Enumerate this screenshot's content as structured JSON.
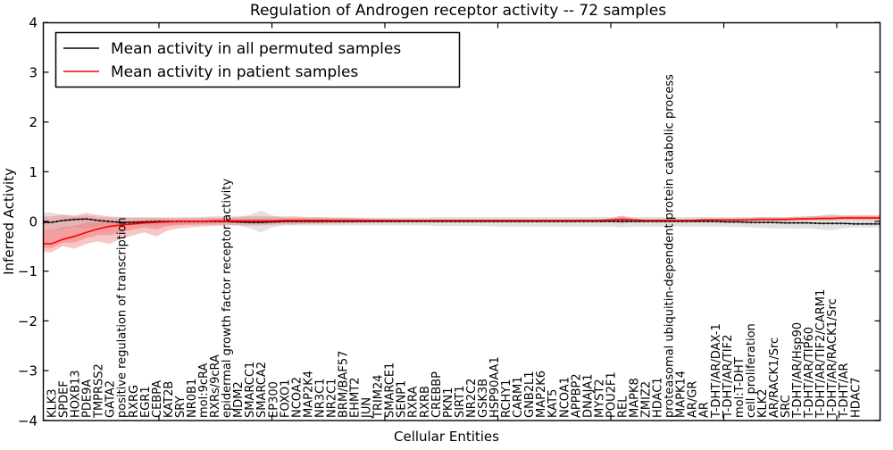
{
  "figure": {
    "title": "Regulation of Androgen receptor activity -- 72 samples",
    "xlabel": "Cellular Entities",
    "ylabel": "Inferred Activity"
  },
  "legend": {
    "items": [
      {
        "label": "Mean activity in all permuted samples",
        "color": "#000000"
      },
      {
        "label": "Mean activity in patient samples",
        "color": "#ff0000"
      }
    ]
  },
  "chart_data": {
    "type": "line",
    "title": "Regulation of Androgen receptor activity -- 72 samples",
    "xlabel": "Cellular Entities",
    "ylabel": "Inferred Activity",
    "ylim": [
      -4,
      4
    ],
    "yticks": [
      4,
      3,
      2,
      1,
      0,
      -1,
      -2,
      -3,
      -4
    ],
    "ytick_labels": [
      "4",
      "3",
      "2",
      "1",
      "0",
      "−1",
      "−2",
      "−3",
      "−4"
    ],
    "grid": false,
    "legend_position": "upper left",
    "colors": {
      "permuted_line": "#000000",
      "permuted_band": "#aaaaaa",
      "patient_line": "#ff0000",
      "patient_band": "#f07070"
    },
    "categories": [
      "KLK3",
      "SPDEF",
      "HOXB13",
      "PDE9A",
      "TMPRSS2",
      "GATA2",
      "positive regulation of transcription",
      "RXRG",
      "EGR1",
      "CEBPA",
      "KAT2B",
      "SRY",
      "NR0B1",
      "mol:9cRA",
      "RXRs/9cRA",
      "epidermal growth factor receptor activity",
      "MDM2",
      "SMARCC1",
      "SMARCA2",
      "EP300",
      "FOXO1",
      "NCOA2",
      "MAP2K4",
      "NR3C1",
      "NR2C1",
      "BRM/BAF57",
      "EHMT2",
      "JUN",
      "TRIM24",
      "SMARCE1",
      "SENP1",
      "RXRA",
      "RXRB",
      "CREBBP",
      "PKN1",
      "SIRT1",
      "NR2C2",
      "GSK3B",
      "HSP90AA1",
      "RCHY1",
      "CARM1",
      "GNB2L1",
      "MAP2K6",
      "KAT5",
      "NCOA1",
      "APPBP2",
      "DNAJA1",
      "MYST2",
      "POU2F1",
      "REL",
      "MAPK8",
      "ZMIZ2",
      "HDAC1",
      "proteasomal ubiquitin-dependent protein catabolic process",
      "MAPK14",
      "AR/GR",
      "AR",
      "T-DHT/AR/DAX-1",
      "T-DHT/AR/TIF2",
      "mol:T-DHT",
      "cell proliferation",
      "KLK2",
      "AR/RACK1/Src",
      "SRC",
      "T-DHT/AR/Hsp90",
      "T-DHT/AR/TIP60",
      "T-DHT/AR/TIF2/CARM1",
      "T-DHT/AR/RACK1/Src",
      "T-DHT/AR",
      "HDAC7"
    ],
    "series": [
      {
        "name": "Mean activity in all permuted samples",
        "color": "#000000",
        "values": [
          -0.02,
          0.02,
          0.04,
          0.05,
          0.02,
          0.0,
          -0.02,
          -0.02,
          -0.01,
          0.0,
          0.0,
          0.0,
          0.0,
          0.0,
          0.0,
          0.0,
          -0.01,
          -0.02,
          -0.02,
          -0.01,
          0.0,
          0.0,
          0.0,
          0.0,
          0.0,
          0.0,
          0.0,
          0.0,
          0.0,
          0.0,
          0.0,
          0.0,
          0.0,
          0.0,
          0.0,
          0.0,
          0.0,
          0.0,
          0.0,
          0.0,
          0.0,
          0.0,
          0.0,
          0.0,
          0.0,
          0.0,
          0.0,
          0.0,
          0.0,
          0.0,
          0.0,
          0.0,
          0.0,
          0.0,
          0.0,
          0.0,
          0.0,
          0.0,
          -0.01,
          -0.01,
          -0.02,
          -0.02,
          -0.02,
          -0.03,
          -0.03,
          -0.03,
          -0.04,
          -0.04,
          -0.04,
          -0.05
        ],
        "band_upper": [
          0.18,
          0.13,
          0.1,
          0.12,
          0.09,
          0.08,
          0.08,
          0.08,
          0.08,
          0.08,
          0.07,
          0.07,
          0.07,
          0.07,
          0.07,
          0.07,
          0.08,
          0.13,
          0.22,
          0.12,
          0.08,
          0.08,
          0.08,
          0.08,
          0.08,
          0.08,
          0.08,
          0.08,
          0.08,
          0.08,
          0.08,
          0.08,
          0.08,
          0.09,
          0.09,
          0.09,
          0.09,
          0.09,
          0.09,
          0.09,
          0.09,
          0.09,
          0.09,
          0.09,
          0.09,
          0.09,
          0.09,
          0.09,
          0.09,
          0.1,
          0.09,
          0.09,
          0.09,
          0.09,
          0.09,
          0.09,
          0.09,
          0.09,
          0.09,
          0.09,
          0.09,
          0.09,
          0.09,
          0.09,
          0.1,
          0.1,
          0.12,
          0.15,
          0.12,
          0.1
        ],
        "band_lower": [
          -0.2,
          -0.15,
          -0.12,
          -0.14,
          -0.1,
          -0.09,
          -0.08,
          -0.08,
          -0.08,
          -0.08,
          -0.08,
          -0.07,
          -0.07,
          -0.07,
          -0.07,
          -0.07,
          -0.08,
          -0.13,
          -0.22,
          -0.12,
          -0.08,
          -0.08,
          -0.08,
          -0.08,
          -0.08,
          -0.08,
          -0.08,
          -0.08,
          -0.08,
          -0.08,
          -0.08,
          -0.08,
          -0.08,
          -0.09,
          -0.09,
          -0.09,
          -0.09,
          -0.09,
          -0.1,
          -0.1,
          -0.1,
          -0.1,
          -0.1,
          -0.1,
          -0.1,
          -0.1,
          -0.1,
          -0.1,
          -0.1,
          -0.12,
          -0.1,
          -0.1,
          -0.1,
          -0.1,
          -0.1,
          -0.1,
          -0.1,
          -0.1,
          -0.11,
          -0.11,
          -0.12,
          -0.13,
          -0.14,
          -0.14,
          -0.15,
          -0.14,
          -0.16,
          -0.18,
          -0.14,
          -0.12
        ]
      },
      {
        "name": "Mean activity in patient samples",
        "color": "#ff0000",
        "values": [
          -0.45,
          -0.36,
          -0.3,
          -0.22,
          -0.15,
          -0.1,
          -0.07,
          -0.05,
          -0.03,
          -0.02,
          -0.01,
          0.0,
          0.0,
          0.0,
          0.01,
          0.01,
          0.01,
          0.01,
          0.01,
          0.01,
          0.02,
          0.02,
          0.02,
          0.02,
          0.02,
          0.02,
          0.02,
          0.02,
          0.02,
          0.02,
          0.02,
          0.02,
          0.02,
          0.02,
          0.02,
          0.02,
          0.02,
          0.02,
          0.02,
          0.02,
          0.02,
          0.02,
          0.02,
          0.02,
          0.02,
          0.02,
          0.02,
          0.02,
          0.03,
          0.04,
          0.03,
          0.02,
          0.02,
          0.02,
          0.02,
          0.02,
          0.03,
          0.03,
          0.03,
          0.03,
          0.03,
          0.04,
          0.04,
          0.04,
          0.05,
          0.05,
          0.06,
          0.06,
          0.07,
          0.07
        ],
        "band_upper": [
          0.1,
          0.14,
          0.12,
          0.17,
          0.13,
          0.1,
          0.09,
          0.08,
          0.08,
          0.08,
          0.08,
          0.08,
          0.08,
          0.09,
          0.1,
          0.1,
          0.1,
          0.1,
          0.1,
          0.1,
          0.1,
          0.1,
          0.09,
          0.09,
          0.08,
          0.08,
          0.07,
          0.06,
          0.05,
          0.05,
          0.04,
          0.04,
          0.04,
          0.04,
          0.04,
          0.04,
          0.04,
          0.04,
          0.04,
          0.04,
          0.04,
          0.04,
          0.04,
          0.04,
          0.04,
          0.05,
          0.05,
          0.05,
          0.06,
          0.12,
          0.06,
          0.05,
          0.05,
          0.05,
          0.05,
          0.05,
          0.06,
          0.06,
          0.06,
          0.06,
          0.07,
          0.09,
          0.08,
          0.08,
          0.09,
          0.1,
          0.11,
          0.12,
          0.12,
          0.13
        ],
        "band_lower": [
          -0.62,
          -0.5,
          -0.55,
          -0.45,
          -0.4,
          -0.45,
          -0.35,
          -0.28,
          -0.22,
          -0.3,
          -0.18,
          -0.14,
          -0.12,
          -0.1,
          -0.09,
          -0.08,
          -0.08,
          -0.08,
          -0.08,
          -0.07,
          -0.06,
          -0.06,
          -0.05,
          -0.05,
          -0.04,
          -0.04,
          -0.03,
          -0.03,
          -0.02,
          -0.02,
          -0.02,
          -0.01,
          -0.01,
          -0.01,
          -0.01,
          -0.01,
          -0.01,
          -0.01,
          -0.01,
          -0.01,
          -0.01,
          -0.01,
          -0.01,
          -0.01,
          -0.01,
          -0.01,
          0.0,
          0.0,
          0.0,
          -0.04,
          0.0,
          0.0,
          0.0,
          0.0,
          0.0,
          0.0,
          0.0,
          0.0,
          0.0,
          0.0,
          0.01,
          0.01,
          0.01,
          0.01,
          0.01,
          0.02,
          0.02,
          0.02,
          0.03,
          0.03
        ]
      }
    ]
  }
}
